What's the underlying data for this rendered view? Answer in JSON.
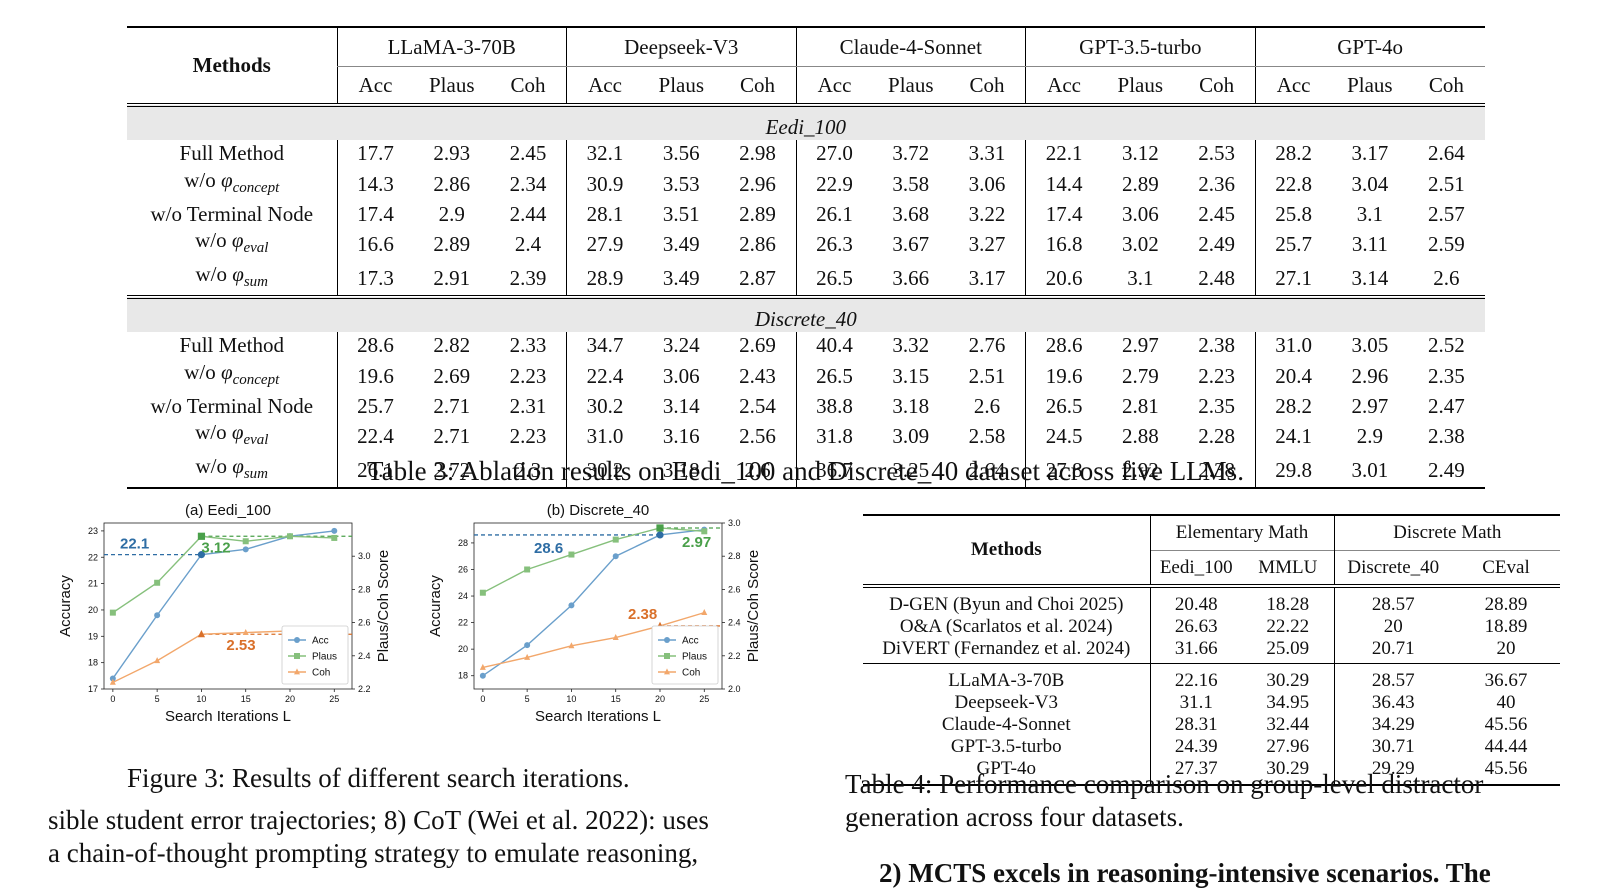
{
  "table3": {
    "methods_header": "Methods",
    "models": [
      "LLaMA-3-70B",
      "Deepseek-V3",
      "Claude-4-Sonnet",
      "GPT-3.5-turbo",
      "GPT-4o"
    ],
    "metrics": [
      "Acc",
      "Plaus",
      "Coh"
    ],
    "sections": [
      {
        "name": "Eedi_100",
        "rows": [
          {
            "method": "Full Method",
            "values": [
              "17.7",
              "2.93",
              "2.45",
              "32.1",
              "3.56",
              "2.98",
              "27.0",
              "3.72",
              "3.31",
              "22.1",
              "3.12",
              "2.53",
              "28.2",
              "3.17",
              "2.64"
            ]
          },
          {
            "method_prefix": "w/o",
            "method_symbol": "φ",
            "method_sub": "concept",
            "values": [
              "14.3",
              "2.86",
              "2.34",
              "30.9",
              "3.53",
              "2.96",
              "22.9",
              "3.58",
              "3.06",
              "14.4",
              "2.89",
              "2.36",
              "22.8",
              "3.04",
              "2.51"
            ]
          },
          {
            "method": "w/o Terminal Node",
            "values": [
              "17.4",
              "2.9",
              "2.44",
              "28.1",
              "3.51",
              "2.89",
              "26.1",
              "3.68",
              "3.22",
              "17.4",
              "3.06",
              "2.45",
              "25.8",
              "3.1",
              "2.57"
            ]
          },
          {
            "method_prefix": "w/o",
            "method_symbol": "φ",
            "method_sub": "eval",
            "values": [
              "16.6",
              "2.89",
              "2.4",
              "27.9",
              "3.49",
              "2.86",
              "26.3",
              "3.67",
              "3.27",
              "16.8",
              "3.02",
              "2.49",
              "25.7",
              "3.11",
              "2.59"
            ]
          },
          {
            "method_prefix": "w/o",
            "method_symbol": "φ",
            "method_sub": "sum",
            "values": [
              "17.3",
              "2.91",
              "2.39",
              "28.9",
              "3.49",
              "2.87",
              "26.5",
              "3.66",
              "3.17",
              "20.6",
              "3.1",
              "2.48",
              "27.1",
              "3.14",
              "2.6"
            ]
          }
        ]
      },
      {
        "name": "Discrete_40",
        "rows": [
          {
            "method": "Full Method",
            "values": [
              "28.6",
              "2.82",
              "2.33",
              "34.7",
              "3.24",
              "2.69",
              "40.4",
              "3.32",
              "2.76",
              "28.6",
              "2.97",
              "2.38",
              "31.0",
              "3.05",
              "2.52"
            ]
          },
          {
            "method_prefix": "w/o",
            "method_symbol": "φ",
            "method_sub": "concept",
            "values": [
              "19.6",
              "2.69",
              "2.23",
              "22.4",
              "3.06",
              "2.43",
              "26.5",
              "3.15",
              "2.51",
              "19.6",
              "2.79",
              "2.23",
              "20.4",
              "2.96",
              "2.35"
            ]
          },
          {
            "method": "w/o Terminal Node",
            "values": [
              "25.7",
              "2.71",
              "2.31",
              "30.2",
              "3.14",
              "2.54",
              "38.8",
              "3.18",
              "2.6",
              "26.5",
              "2.81",
              "2.35",
              "28.2",
              "2.97",
              "2.47"
            ]
          },
          {
            "method_prefix": "w/o",
            "method_symbol": "φ",
            "method_sub": "eval",
            "values": [
              "22.4",
              "2.71",
              "2.23",
              "31.0",
              "3.16",
              "2.56",
              "31.8",
              "3.09",
              "2.58",
              "24.5",
              "2.88",
              "2.28",
              "24.1",
              "2.9",
              "2.38"
            ]
          },
          {
            "method_prefix": "w/o",
            "method_symbol": "φ",
            "method_sub": "sum",
            "values": [
              "26.1",
              "2.72",
              "2.3",
              "30.2",
              "3.18",
              "2.6",
              "36.7",
              "3.25",
              "2.64",
              "27.8",
              "2.92",
              "2.38",
              "29.8",
              "3.01",
              "2.49"
            ]
          }
        ]
      }
    ],
    "caption": "Table 3: Ablation results on Eedi_100 and Discrete_40 dataset across five LLMs."
  },
  "chart_data": [
    {
      "type": "line",
      "title": "(a) Eedi_100",
      "xlabel": "Search Iterations L",
      "ylabel": "Accuracy",
      "ylabel_right": "Plaus/Coh Score",
      "x": [
        0,
        5,
        10,
        15,
        20,
        25
      ],
      "xticks": [
        "0",
        "5",
        "10",
        "15",
        "20",
        "25"
      ],
      "ylim": [
        17,
        23.3
      ],
      "yticks": [
        "17",
        "18",
        "19",
        "20",
        "21",
        "22",
        "23"
      ],
      "ylim_right": [
        2.2,
        3.2
      ],
      "yticks_right": [
        "2.2",
        "2.4",
        "2.6",
        "2.8",
        "3.0"
      ],
      "series": [
        {
          "name": "Acc",
          "axis": "left",
          "marker": "circle",
          "color": "#6a9fcb",
          "values": [
            17.4,
            19.8,
            22.1,
            22.3,
            22.8,
            23.0
          ]
        },
        {
          "name": "Plaus",
          "axis": "right",
          "marker": "square",
          "color": "#86c07c",
          "values": [
            2.66,
            2.84,
            3.12,
            3.09,
            3.12,
            3.11
          ]
        },
        {
          "name": "Coh",
          "axis": "right",
          "marker": "triangle",
          "color": "#f2a76b",
          "values": [
            2.24,
            2.37,
            2.53,
            2.54,
            2.55,
            2.56
          ]
        }
      ],
      "annotations": [
        {
          "text": "22.1",
          "color": "#2e6da4"
        },
        {
          "text": "3.12",
          "color": "#4aa04a"
        },
        {
          "text": "2.53",
          "color": "#d9702a"
        }
      ],
      "highlight_x": 10,
      "legend": "lower-right",
      "grid": false
    },
    {
      "type": "line",
      "title": "(b) Discrete_40",
      "xlabel": "Search Iterations L",
      "ylabel": "Accuracy",
      "ylabel_right": "Plaus/Coh Score",
      "x": [
        0,
        5,
        10,
        15,
        20,
        25
      ],
      "xticks": [
        "0",
        "5",
        "10",
        "15",
        "20",
        "25"
      ],
      "ylim": [
        17,
        29.5
      ],
      "yticks": [
        "18",
        "20",
        "22",
        "24",
        "26",
        "28"
      ],
      "ylim_right": [
        2.0,
        3.0
      ],
      "yticks_right": [
        "2.0",
        "2.2",
        "2.4",
        "2.6",
        "2.8",
        "3.0"
      ],
      "series": [
        {
          "name": "Acc",
          "axis": "left",
          "marker": "circle",
          "color": "#6a9fcb",
          "values": [
            18.0,
            20.3,
            23.3,
            27.0,
            28.6,
            29.0
          ]
        },
        {
          "name": "Plaus",
          "axis": "right",
          "marker": "square",
          "color": "#86c07c",
          "values": [
            2.58,
            2.72,
            2.81,
            2.9,
            2.97,
            2.95
          ]
        },
        {
          "name": "Coh",
          "axis": "right",
          "marker": "triangle",
          "color": "#f2a76b",
          "values": [
            2.13,
            2.19,
            2.26,
            2.31,
            2.38,
            2.46
          ]
        }
      ],
      "annotations": [
        {
          "text": "28.6",
          "color": "#2e6da4"
        },
        {
          "text": "2.97",
          "color": "#4aa04a"
        },
        {
          "text": "2.38",
          "color": "#d9702a"
        }
      ],
      "highlight_x": 20,
      "legend": "lower-right",
      "grid": false
    }
  ],
  "figure3_caption": "Figure 3: Results of different search iterations.",
  "body_left": [
    "sible student error trajectories; 8) CoT (Wei et al. 2022): uses",
    "a chain-of-thought prompting strategy to emulate reasoning,"
  ],
  "table4": {
    "methods_header": "Methods",
    "groups": [
      "Elementary Math",
      "Discrete Math"
    ],
    "datasets": [
      "Eedi_100",
      "MMLU",
      "Discrete_40",
      "CEval"
    ],
    "baseline_rows": [
      {
        "method": "D-GEN (Byun and Choi 2025)",
        "values": [
          "20.48",
          "18.28",
          "28.57",
          "28.89"
        ]
      },
      {
        "method": "O&A (Scarlatos et al. 2024)",
        "values": [
          "26.63",
          "22.22",
          "20",
          "18.89"
        ]
      },
      {
        "method": "DiVERT (Fernandez et al. 2024)",
        "values": [
          "31.66",
          "25.09",
          "20.71",
          "20"
        ]
      }
    ],
    "ours_rows": [
      {
        "method": "LLaMA-3-70B",
        "values": [
          "22.16",
          "30.29",
          "28.57",
          "36.67"
        ]
      },
      {
        "method": "Deepseek-V3",
        "values": [
          "31.1",
          "34.95",
          "36.43",
          "40"
        ]
      },
      {
        "method": "Claude-4-Sonnet",
        "values": [
          "28.31",
          "32.44",
          "34.29",
          "45.56"
        ]
      },
      {
        "method": "GPT-3.5-turbo",
        "values": [
          "24.39",
          "27.96",
          "30.71",
          "44.44"
        ]
      },
      {
        "method": "GPT-4o",
        "values": [
          "27.37",
          "30.29",
          "29.29",
          "45.56"
        ]
      }
    ],
    "caption": "Table 4: Performance comparison on group-level distractor generation across four datasets."
  },
  "body_right": "2) MCTS excels in reasoning-intensive scenarios. The"
}
